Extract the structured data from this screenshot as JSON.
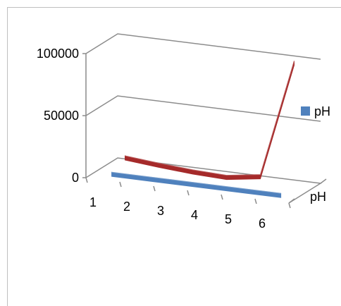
{
  "chart_data": {
    "type": "line",
    "title": "",
    "categories": [
      "1",
      "2",
      "3",
      "4",
      "5",
      "6"
    ],
    "y_ticks": [
      "0",
      "50000",
      "100000"
    ],
    "ylim": [
      0,
      100000
    ],
    "depth_series_label": "pH",
    "grid": true,
    "legend_position": "right",
    "series": [
      {
        "name": "pH",
        "style": "ribbon",
        "color": "#4f81bd",
        "values": [
          0,
          0,
          0,
          0,
          0,
          0
        ]
      },
      {
        "style": "ribbon",
        "color": "#a52a2a",
        "values": [
          6500,
          4000,
          2000,
          1000,
          5000,
          100000
        ]
      }
    ]
  }
}
